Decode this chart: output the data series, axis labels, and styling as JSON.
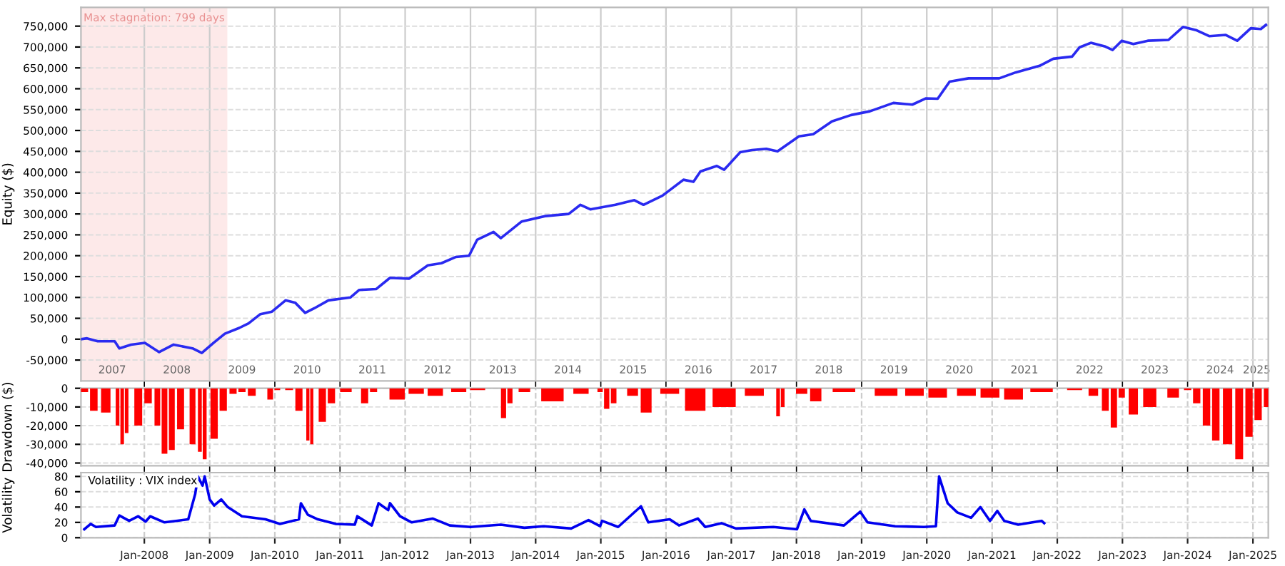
{
  "chart_data": [
    {
      "type": "line",
      "ylabel": "Equity ($)",
      "xlim": [
        "2007-01-11",
        "2025-03-28"
      ],
      "ylim": [
        -100000,
        795000
      ],
      "yticks": [
        {
          "value": -50000,
          "label": "-50,000"
        },
        0,
        {
          "value": 50000,
          "label": "50,000"
        },
        {
          "value": 100000,
          "label": "100,000"
        },
        {
          "value": 150000,
          "label": "150,000"
        },
        {
          "value": 200000,
          "label": "200,000"
        },
        {
          "value": 250000,
          "label": "250,000"
        },
        {
          "value": 300000,
          "label": "300,000"
        },
        {
          "value": 350000,
          "label": "350,000"
        },
        {
          "value": 400000,
          "label": "400,000"
        },
        {
          "value": 450000,
          "label": "450,000"
        },
        {
          "value": 500000,
          "label": "500,000"
        },
        {
          "value": 550000,
          "label": "550,000"
        },
        {
          "value": 600000,
          "label": "600,000"
        },
        {
          "value": 650000,
          "label": "650,000"
        },
        {
          "value": 700000,
          "label": "700,000"
        },
        {
          "value": 750000,
          "label": "750,000"
        }
      ],
      "xticks": [
        {
          "value": "2007-07-05",
          "label": "2007"
        },
        {
          "value": "2008-07-01",
          "label": "2008"
        },
        {
          "value": "2009-07-01",
          "label": "2009"
        },
        {
          "value": "2010-07-01",
          "label": "2010"
        },
        {
          "value": "2011-07-01",
          "label": "2011"
        },
        {
          "value": "2012-07-01",
          "label": "2012"
        },
        {
          "value": "2013-07-01",
          "label": "2013"
        },
        {
          "value": "2014-07-01",
          "label": "2014"
        },
        {
          "value": "2015-07-01",
          "label": "2015"
        },
        {
          "value": "2016-07-01",
          "label": "2016"
        },
        {
          "value": "2017-07-01",
          "label": "2017"
        },
        {
          "value": "2018-07-01",
          "label": "2018"
        },
        {
          "value": "2019-07-01",
          "label": "2019"
        },
        {
          "value": "2020-07-01",
          "label": "2020"
        },
        {
          "value": "2021-07-01",
          "label": "2021"
        },
        {
          "value": "2022-07-01",
          "label": "2022"
        },
        {
          "value": "2023-07-01",
          "label": "2023"
        },
        {
          "value": "2024-07-01",
          "label": "2024"
        },
        {
          "value": "2025-01-22",
          "label": "2025"
        },
        {
          "value": "2008-01-01",
          "label": null
        },
        {
          "value": "2009-01-01",
          "label": null
        },
        {
          "value": "2010-01-01",
          "label": null
        },
        {
          "value": "2011-01-01",
          "label": null
        },
        {
          "value": "2012-01-01",
          "label": null
        },
        {
          "value": "2013-01-01",
          "label": null
        },
        {
          "value": "2014-01-01",
          "label": null
        },
        {
          "value": "2015-01-01",
          "label": null
        },
        {
          "value": "2016-01-01",
          "label": null
        },
        {
          "value": "2017-01-01",
          "label": null
        },
        {
          "value": "2018-01-01",
          "label": null
        },
        {
          "value": "2019-01-01",
          "label": null
        },
        {
          "value": "2020-01-01",
          "label": null
        },
        {
          "value": "2021-01-01",
          "label": null
        },
        {
          "value": "2022-01-01",
          "label": null
        },
        {
          "value": "2023-01-01",
          "label": null
        },
        {
          "value": "2024-01-01",
          "label": null
        },
        {
          "value": "2025-01-01",
          "label": null
        }
      ],
      "grid": true,
      "marker": "none",
      "line_style": "solid",
      "bands": [
        {
          "axis": "x",
          "from": "2007-01-11",
          "to": "2009-04-10",
          "label": "Max stagnation: 799 days",
          "color": "#fde9e9"
        }
      ],
      "series": [
        {
          "color": "#2a2af0",
          "x": [
            "2007-01-11",
            "2007-02-14",
            "2007-04-15",
            "2007-07-19",
            "2007-08-14",
            "2007-10-19",
            "2008-01-04",
            "2008-03-24",
            "2008-06-13",
            "2008-09-27",
            "2008-11-18",
            "2009-01-22",
            "2009-03-27",
            "2009-06-16",
            "2009-08-07",
            "2009-10-12",
            "2009-12-16",
            "2010-03-02",
            "2010-04-26",
            "2010-06-20",
            "2010-08-10",
            "2010-10-28",
            "2011-02-28",
            "2011-04-19",
            "2011-07-22",
            "2011-10-08",
            "2012-01-22",
            "2012-05-07",
            "2012-07-22",
            "2012-10-12",
            "2012-12-24",
            "2013-02-07",
            "2013-05-10",
            "2013-06-20",
            "2013-10-15",
            "2014-02-25",
            "2014-07-05",
            "2014-09-09",
            "2014-11-03",
            "2015-03-24",
            "2015-07-08",
            "2015-08-28",
            "2015-12-13",
            "2016-04-08",
            "2016-06-03",
            "2016-07-12",
            "2016-10-12",
            "2016-11-22",
            "2017-02-20",
            "2017-04-27",
            "2017-07-16",
            "2017-09-17",
            "2018-01-15",
            "2018-04-05",
            "2018-07-19",
            "2018-11-03",
            "2019-02-16",
            "2019-06-28",
            "2019-10-12",
            "2019-12-28",
            "2020-03-02",
            "2020-05-08",
            "2020-08-22",
            "2021-02-10",
            "2021-05-12",
            "2021-09-24",
            "2021-12-10",
            "2022-03-25",
            "2022-05-05",
            "2022-07-08",
            "2022-09-27",
            "2022-11-07",
            "2022-12-28",
            "2023-03-03",
            "2023-05-23",
            "2023-09-16",
            "2023-12-06",
            "2024-02-21",
            "2024-05-01",
            "2024-07-31",
            "2024-10-05",
            "2024-12-20",
            "2025-02-14",
            "2025-03-15"
          ],
          "values": [
            0,
            2000,
            -5000,
            -5000,
            -22000,
            -13000,
            -9000,
            -31000,
            -13000,
            -22000,
            -33000,
            -9000,
            13000,
            27000,
            38000,
            60000,
            66000,
            93000,
            87000,
            63000,
            74000,
            93000,
            100000,
            118000,
            120000,
            147000,
            145000,
            177000,
            182000,
            197000,
            200000,
            238000,
            257000,
            242000,
            282000,
            295000,
            300000,
            322000,
            311000,
            322000,
            333000,
            322000,
            344000,
            382000,
            377000,
            402000,
            415000,
            406000,
            448000,
            453000,
            456000,
            450000,
            486000,
            491000,
            522000,
            537000,
            546000,
            566000,
            562000,
            577000,
            576000,
            617000,
            625000,
            625000,
            639000,
            655000,
            672000,
            677000,
            699000,
            710000,
            701000,
            693000,
            715000,
            707000,
            715000,
            717000,
            748000,
            740000,
            726000,
            729000,
            715000,
            745000,
            743000,
            753000
          ]
        }
      ]
    },
    {
      "type": "bar",
      "ylabel": "Drawdown ($)",
      "xlim": [
        "2007-01-11",
        "2025-03-28"
      ],
      "ylim": [
        -41500,
        0
      ],
      "tick_labels": "y",
      "grid": true,
      "yticks": [
        {
          "value": -40000,
          "label": "-40,000"
        },
        {
          "value": -30000,
          "label": "-30,000"
        },
        {
          "value": -20000,
          "label": "-20,000"
        },
        {
          "value": -10000,
          "label": "-10,000"
        },
        0
      ],
      "xticks": [
        {
          "value": "2008-01-01",
          "label": null
        },
        {
          "value": "2009-01-01",
          "label": null
        },
        {
          "value": "2010-01-01",
          "label": null
        },
        {
          "value": "2011-01-01",
          "label": null
        },
        {
          "value": "2012-01-01",
          "label": null
        },
        {
          "value": "2013-01-01",
          "label": null
        },
        {
          "value": "2014-01-01",
          "label": null
        },
        {
          "value": "2015-01-01",
          "label": null
        },
        {
          "value": "2016-01-01",
          "label": null
        },
        {
          "value": "2017-01-01",
          "label": null
        },
        {
          "value": "2018-01-01",
          "label": null
        },
        {
          "value": "2019-01-01",
          "label": null
        },
        {
          "value": "2020-01-01",
          "label": null
        },
        {
          "value": "2021-01-01",
          "label": null
        },
        {
          "value": "2022-01-01",
          "label": null
        },
        {
          "value": "2023-01-01",
          "label": null
        },
        {
          "value": "2024-01-01",
          "label": null
        },
        {
          "value": "2025-01-01",
          "label": null
        }
      ],
      "series": [
        {
          "color": "#ff0000",
          "x": [
            "2007-01-30",
            "2007-03-24",
            "2007-05-30",
            "2007-08-04",
            "2007-08-30",
            "2007-09-24",
            "2007-11-28",
            "2008-01-22",
            "2008-03-14",
            "2008-04-23",
            "2008-06-03",
            "2008-07-22",
            "2008-09-27",
            "2008-11-07",
            "2008-12-04",
            "2009-01-26",
            "2009-03-18",
            "2009-05-12",
            "2009-07-01",
            "2009-08-25",
            "2009-12-06",
            "2010-01-15",
            "2010-03-22",
            "2010-05-16",
            "2010-07-05",
            "2010-07-27",
            "2010-09-24",
            "2010-11-14",
            "2011-02-03",
            "2011-05-19",
            "2011-07-08",
            "2011-11-17",
            "2012-03-03",
            "2012-06-18",
            "2012-10-27",
            "2013-02-10",
            "2013-07-05",
            "2013-08-10",
            "2013-10-30",
            "2014-04-05",
            "2014-09-12",
            "2014-12-28",
            "2015-02-03",
            "2015-03-14",
            "2015-06-28",
            "2015-09-12",
            "2016-01-22",
            "2016-06-13",
            "2016-11-22",
            "2017-05-10",
            "2017-09-20",
            "2017-10-16",
            "2018-01-30",
            "2018-04-19",
            "2018-09-24",
            "2019-05-18",
            "2019-10-24",
            "2020-03-02",
            "2020-08-10",
            "2020-12-20",
            "2021-05-01",
            "2021-10-05",
            "2022-04-08",
            "2022-07-22",
            "2022-09-27",
            "2022-11-14",
            "2022-12-28",
            "2023-03-03",
            "2023-06-03",
            "2023-10-12",
            "2024-01-01",
            "2024-02-21",
            "2024-04-16",
            "2024-06-07",
            "2024-08-12",
            "2024-10-16",
            "2024-12-10",
            "2025-01-30",
            "2025-03-24"
          ],
          "values": [
            -2000,
            -12000,
            -13000,
            -20000,
            -30000,
            -24000,
            -20000,
            -8000,
            -20000,
            -35000,
            -33000,
            -22000,
            -30000,
            -34000,
            -38000,
            -27000,
            -12000,
            -3000,
            -2000,
            -4000,
            -6000,
            -1000,
            -1000,
            -12000,
            -28000,
            -30000,
            -18000,
            -8000,
            -2000,
            -8000,
            -2000,
            -6000,
            -3000,
            -4000,
            -2000,
            -1000,
            -16000,
            -8000,
            -2000,
            -7000,
            -3000,
            -2000,
            -11000,
            -8000,
            -4000,
            -13000,
            -3000,
            -12000,
            -10000,
            -4000,
            -15000,
            -10000,
            -3000,
            -7000,
            -2000,
            -4000,
            -4000,
            -5000,
            -4000,
            -5000,
            -6000,
            -2000,
            -1000,
            -4000,
            -12000,
            -21000,
            -5000,
            -14000,
            -10000,
            -5000,
            -1000,
            -8000,
            -20000,
            -28000,
            -30000,
            -38000,
            -26000,
            -17000,
            -10000
          ]
        }
      ]
    },
    {
      "type": "line",
      "ylabel": "Volatility",
      "annotations": [
        "Volatility : VIX index"
      ],
      "xlim": [
        "2007-01-11",
        "2025-03-28"
      ],
      "ylim": [
        0,
        85
      ],
      "yticks": [
        0,
        20,
        40,
        60,
        80
      ],
      "grid": true,
      "marker": "none",
      "line_style": "solid",
      "xticks": [
        {
          "value": "2008-01-01",
          "label": "Jan-2008"
        },
        {
          "value": "2009-01-01",
          "label": "Jan-2009"
        },
        {
          "value": "2010-01-01",
          "label": "Jan-2010"
        },
        {
          "value": "2011-01-01",
          "label": "Jan-2011"
        },
        {
          "value": "2012-01-01",
          "label": "Jan-2012"
        },
        {
          "value": "2013-01-01",
          "label": "Jan-2013"
        },
        {
          "value": "2014-01-01",
          "label": "Jan-2014"
        },
        {
          "value": "2015-01-01",
          "label": "Jan-2015"
        },
        {
          "value": "2016-01-01",
          "label": "Jan-2016"
        },
        {
          "value": "2017-01-01",
          "label": "Jan-2017"
        },
        {
          "value": "2018-01-01",
          "label": "Jan-2018"
        },
        {
          "value": "2019-01-01",
          "label": "Jan-2019"
        },
        {
          "value": "2020-01-01",
          "label": "Jan-2020"
        },
        {
          "value": "2021-01-01",
          "label": "Jan-2021"
        },
        {
          "value": "2022-01-01",
          "label": "Jan-2022"
        },
        {
          "value": "2023-01-01",
          "label": "Jan-2023"
        },
        {
          "value": "2024-01-01",
          "label": "Jan-2024"
        },
        {
          "value": "2025-01-01",
          "label": "Jan-2025"
        }
      ],
      "series": [
        {
          "color": "#0000ee",
          "x": [
            "2007-01-30",
            "2007-03-07",
            "2007-04-05",
            "2007-07-19",
            "2007-08-14",
            "2007-10-08",
            "2007-11-28",
            "2008-01-08",
            "2008-02-03",
            "2008-04-23",
            "2008-06-28",
            "2008-09-03",
            "2008-10-12",
            "2008-10-27",
            "2008-11-22",
            "2008-12-04",
            "2009-01-01",
            "2009-01-26",
            "2009-03-07",
            "2009-04-12",
            "2009-07-01",
            "2009-11-10",
            "2010-01-30",
            "2010-05-16",
            "2010-05-27",
            "2010-07-05",
            "2010-08-30",
            "2010-12-10",
            "2011-03-25",
            "2011-04-08",
            "2011-06-28",
            "2011-08-05",
            "2011-09-28",
            "2011-10-08",
            "2011-12-03",
            "2012-02-07",
            "2012-06-03",
            "2012-09-07",
            "2013-01-01",
            "2013-06-20",
            "2013-10-30",
            "2014-02-14",
            "2014-07-19",
            "2014-10-24",
            "2014-12-28",
            "2015-01-08",
            "2015-04-08",
            "2015-08-14",
            "2015-09-24",
            "2016-01-22",
            "2016-03-14",
            "2016-06-28",
            "2016-08-08",
            "2016-11-07",
            "2017-01-27",
            "2017-08-25",
            "2018-01-04",
            "2018-02-14",
            "2018-03-22",
            "2018-09-24",
            "2018-12-24",
            "2019-02-03",
            "2019-07-08",
            "2019-12-16",
            "2020-02-21",
            "2020-03-10",
            "2020-04-27",
            "2020-06-20",
            "2020-09-05",
            "2020-10-27",
            "2020-12-20",
            "2021-01-30",
            "2021-03-10",
            "2021-05-27",
            "2021-08-15",
            "2021-10-05",
            "2021-10-20"
          ],
          "values": [
            11,
            18,
            14,
            16,
            29,
            22,
            28,
            21,
            28,
            20,
            22,
            24,
            57,
            80,
            68,
            80,
            50,
            42,
            50,
            40,
            28,
            24,
            18,
            24,
            45,
            30,
            24,
            18,
            17,
            28,
            16,
            45,
            36,
            45,
            28,
            20,
            25,
            16,
            14,
            17,
            13,
            15,
            12,
            23,
            15,
            22,
            14,
            41,
            20,
            24,
            16,
            25,
            14,
            19,
            12,
            14,
            11,
            37,
            22,
            16,
            34,
            20,
            15,
            14,
            15,
            80,
            45,
            33,
            26,
            40,
            22,
            35,
            22,
            17,
            20,
            22,
            19
          ]
        }
      ]
    }
  ]
}
